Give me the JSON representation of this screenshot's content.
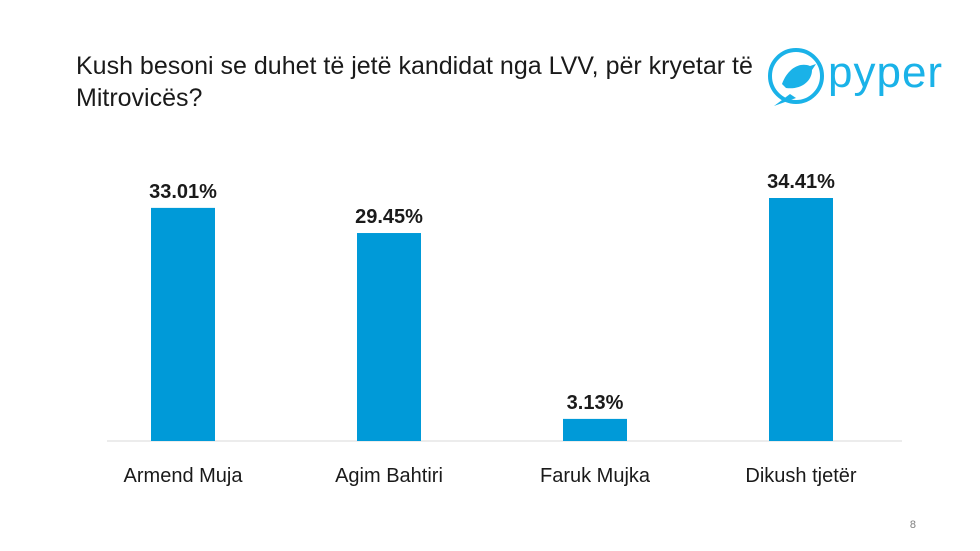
{
  "title": "Kush besoni se duhet të jetë kandidat nga LVV, për kryetar të Mitrovicës?",
  "logo_text": "pyper",
  "page_number": "8",
  "colors": {
    "bar": "#009ad8",
    "axis": "#d9d9d9",
    "logo": "#1ab2e8"
  },
  "chart_data": {
    "type": "bar",
    "categories": [
      "Armend Muja",
      "Agim Bahtiri",
      "Faruk Mujka",
      "Dikush tjetër"
    ],
    "values": [
      33.01,
      29.45,
      3.13,
      34.41
    ],
    "value_labels": [
      "33.01%",
      "29.45%",
      "3.13%",
      "34.41%"
    ],
    "title": "",
    "xlabel": "",
    "ylabel": "",
    "ylim": [
      0,
      34.41
    ],
    "grid": false,
    "legend": "none"
  }
}
